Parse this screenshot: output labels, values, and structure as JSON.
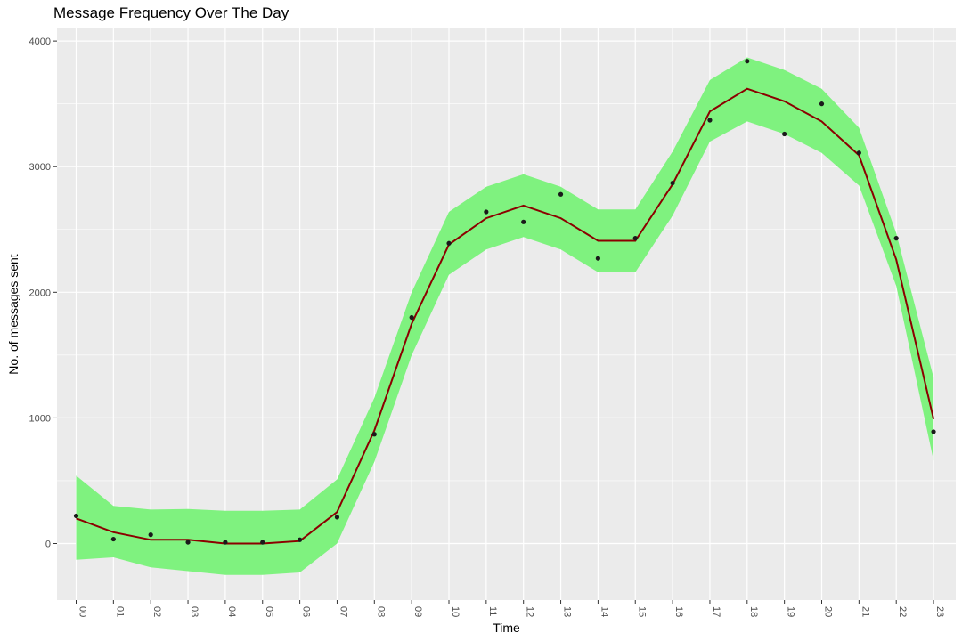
{
  "chart_data": {
    "type": "line",
    "title": "Message Frequency Over The Day",
    "xlabel": "Time",
    "ylabel": "No. of messages sent",
    "categories": [
      "00",
      "01",
      "02",
      "03",
      "04",
      "05",
      "06",
      "07",
      "08",
      "09",
      "10",
      "11",
      "12",
      "13",
      "14",
      "15",
      "16",
      "17",
      "18",
      "19",
      "20",
      "21",
      "22",
      "23"
    ],
    "ylim": [
      -450,
      4100
    ],
    "yticks": [
      0,
      1000,
      2000,
      3000,
      4000
    ],
    "grid": true,
    "points": [
      220,
      35,
      70,
      10,
      10,
      10,
      30,
      210,
      870,
      1800,
      2390,
      2640,
      2560,
      2780,
      2270,
      2430,
      2870,
      3370,
      3840,
      3260,
      3500,
      3110,
      2430,
      890
    ],
    "smooth": [
      200,
      90,
      30,
      30,
      0,
      0,
      20,
      250,
      900,
      1750,
      2380,
      2590,
      2690,
      2590,
      2410,
      2410,
      2860,
      3440,
      3620,
      3520,
      3360,
      3090,
      2260,
      990
    ],
    "band_upper": [
      540,
      300,
      270,
      275,
      260,
      260,
      270,
      510,
      1160,
      2000,
      2640,
      2840,
      2940,
      2840,
      2660,
      2660,
      3120,
      3690,
      3870,
      3770,
      3620,
      3310,
      2470,
      1320
    ],
    "band_lower": [
      -130,
      -110,
      -190,
      -220,
      -250,
      -250,
      -230,
      0,
      650,
      1500,
      2140,
      2340,
      2440,
      2340,
      2160,
      2160,
      2610,
      3200,
      3360,
      3260,
      3110,
      2850,
      2050,
      660
    ],
    "colors": {
      "panel": "#ebebeb",
      "grid": "#ffffff",
      "band": "#7ff27f",
      "line": "#8b0000",
      "points": "#1a1a1a"
    }
  }
}
